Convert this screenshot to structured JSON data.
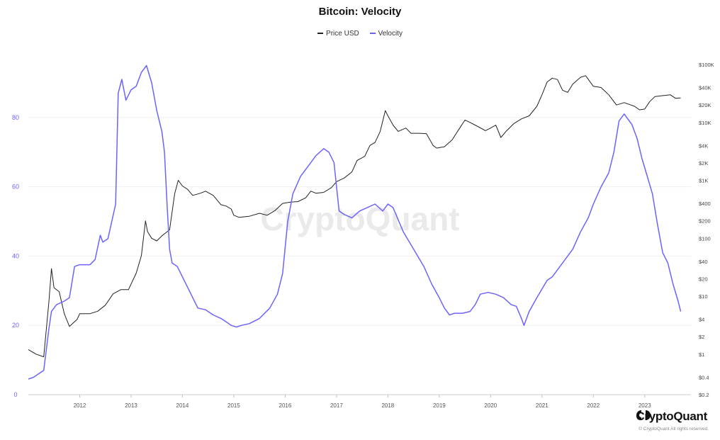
{
  "chart_data": {
    "type": "line",
    "title": "Bitcoin: Velocity",
    "legend_placement": "top-center",
    "grid": true,
    "x_ticks": [
      "2012",
      "2013",
      "2014",
      "2015",
      "2016",
      "2017",
      "2018",
      "2019",
      "2020",
      "2021",
      "2022",
      "2023"
    ],
    "x_range": [
      2011.0,
      2023.9
    ],
    "left_axis": {
      "ticks": [
        "0",
        "20",
        "40",
        "60",
        "80"
      ],
      "range": [
        0,
        100
      ],
      "color": "#6c63ff"
    },
    "right_axis": {
      "scale": "log",
      "ticks": [
        "$100K",
        "$40K",
        "$20K",
        "$10K",
        "$4K",
        "$2K",
        "$1K",
        "$400",
        "$200",
        "$100",
        "$40",
        "$20",
        "$10",
        "$4",
        "$2",
        "$1",
        "$0.4",
        "$0.2"
      ],
      "tick_values": [
        100000,
        40000,
        20000,
        10000,
        4000,
        2000,
        1000,
        400,
        200,
        100,
        40,
        20,
        10,
        4,
        2,
        1,
        0.4,
        0.2
      ],
      "range": [
        0.2,
        100000
      ]
    },
    "series": [
      {
        "name": "Price USD",
        "axis": "right",
        "color": "#222222",
        "points": [
          [
            2011.0,
            1.2
          ],
          [
            2011.15,
            1
          ],
          [
            2011.3,
            0.9
          ],
          [
            2011.4,
            8
          ],
          [
            2011.45,
            30
          ],
          [
            2011.5,
            14
          ],
          [
            2011.6,
            12
          ],
          [
            2011.7,
            5
          ],
          [
            2011.8,
            3
          ],
          [
            2011.95,
            4
          ],
          [
            2012.0,
            5
          ],
          [
            2012.2,
            5
          ],
          [
            2012.35,
            5.5
          ],
          [
            2012.5,
            7
          ],
          [
            2012.65,
            11
          ],
          [
            2012.8,
            13
          ],
          [
            2012.95,
            13
          ],
          [
            2013.1,
            25
          ],
          [
            2013.2,
            50
          ],
          [
            2013.28,
            200
          ],
          [
            2013.32,
            130
          ],
          [
            2013.4,
            100
          ],
          [
            2013.5,
            90
          ],
          [
            2013.6,
            110
          ],
          [
            2013.75,
            140
          ],
          [
            2013.85,
            600
          ],
          [
            2013.92,
            1000
          ],
          [
            2014.0,
            800
          ],
          [
            2014.1,
            700
          ],
          [
            2014.2,
            550
          ],
          [
            2014.35,
            600
          ],
          [
            2014.45,
            650
          ],
          [
            2014.6,
            550
          ],
          [
            2014.75,
            380
          ],
          [
            2014.85,
            360
          ],
          [
            2014.95,
            320
          ],
          [
            2015.0,
            250
          ],
          [
            2015.1,
            230
          ],
          [
            2015.3,
            240
          ],
          [
            2015.5,
            270
          ],
          [
            2015.65,
            250
          ],
          [
            2015.8,
            300
          ],
          [
            2015.95,
            400
          ],
          [
            2016.1,
            420
          ],
          [
            2016.25,
            430
          ],
          [
            2016.4,
            500
          ],
          [
            2016.5,
            650
          ],
          [
            2016.6,
            600
          ],
          [
            2016.75,
            620
          ],
          [
            2016.9,
            750
          ],
          [
            2017.0,
            950
          ],
          [
            2017.15,
            1100
          ],
          [
            2017.3,
            1400
          ],
          [
            2017.4,
            2200
          ],
          [
            2017.55,
            2600
          ],
          [
            2017.65,
            4000
          ],
          [
            2017.75,
            4500
          ],
          [
            2017.85,
            7000
          ],
          [
            2017.95,
            16000
          ],
          [
            2018.0,
            13000
          ],
          [
            2018.1,
            9000
          ],
          [
            2018.2,
            7000
          ],
          [
            2018.35,
            8000
          ],
          [
            2018.45,
            6500
          ],
          [
            2018.6,
            6500
          ],
          [
            2018.75,
            6400
          ],
          [
            2018.88,
            4000
          ],
          [
            2018.95,
            3600
          ],
          [
            2019.1,
            3800
          ],
          [
            2019.25,
            5000
          ],
          [
            2019.4,
            8000
          ],
          [
            2019.5,
            11000
          ],
          [
            2019.6,
            10000
          ],
          [
            2019.75,
            8500
          ],
          [
            2019.9,
            7200
          ],
          [
            2020.0,
            8000
          ],
          [
            2020.1,
            9000
          ],
          [
            2020.2,
            5500
          ],
          [
            2020.3,
            7000
          ],
          [
            2020.45,
            9500
          ],
          [
            2020.6,
            11500
          ],
          [
            2020.75,
            13000
          ],
          [
            2020.9,
            19000
          ],
          [
            2021.0,
            30000
          ],
          [
            2021.1,
            50000
          ],
          [
            2021.2,
            58000
          ],
          [
            2021.3,
            55000
          ],
          [
            2021.4,
            36000
          ],
          [
            2021.5,
            33000
          ],
          [
            2021.6,
            46000
          ],
          [
            2021.75,
            60000
          ],
          [
            2021.85,
            64000
          ],
          [
            2022.0,
            42000
          ],
          [
            2022.15,
            40000
          ],
          [
            2022.3,
            30000
          ],
          [
            2022.45,
            20000
          ],
          [
            2022.6,
            22000
          ],
          [
            2022.8,
            19000
          ],
          [
            2022.9,
            16500
          ],
          [
            2023.0,
            17000
          ],
          [
            2023.1,
            23000
          ],
          [
            2023.2,
            28000
          ],
          [
            2023.35,
            29000
          ],
          [
            2023.5,
            30000
          ],
          [
            2023.6,
            26000
          ],
          [
            2023.7,
            26500
          ]
        ]
      },
      {
        "name": "Velocity",
        "axis": "left",
        "color": "#6c63ff",
        "points": [
          [
            2011.0,
            4.5
          ],
          [
            2011.1,
            5
          ],
          [
            2011.3,
            7
          ],
          [
            2011.4,
            19
          ],
          [
            2011.45,
            24
          ],
          [
            2011.55,
            26
          ],
          [
            2011.7,
            27
          ],
          [
            2011.8,
            28
          ],
          [
            2011.9,
            37
          ],
          [
            2012.0,
            37.5
          ],
          [
            2012.2,
            37.5
          ],
          [
            2012.3,
            39
          ],
          [
            2012.4,
            46
          ],
          [
            2012.45,
            44
          ],
          [
            2012.55,
            45
          ],
          [
            2012.7,
            55
          ],
          [
            2012.75,
            87
          ],
          [
            2012.82,
            91
          ],
          [
            2012.9,
            85
          ],
          [
            2013.0,
            88
          ],
          [
            2013.1,
            89
          ],
          [
            2013.2,
            93
          ],
          [
            2013.3,
            95
          ],
          [
            2013.4,
            90
          ],
          [
            2013.5,
            82
          ],
          [
            2013.6,
            76
          ],
          [
            2013.65,
            70
          ],
          [
            2013.7,
            55
          ],
          [
            2013.75,
            42
          ],
          [
            2013.8,
            38
          ],
          [
            2013.9,
            37
          ],
          [
            2014.0,
            34
          ],
          [
            2014.1,
            31
          ],
          [
            2014.2,
            28
          ],
          [
            2014.3,
            25
          ],
          [
            2014.45,
            24.5
          ],
          [
            2014.6,
            23
          ],
          [
            2014.75,
            22
          ],
          [
            2014.85,
            21
          ],
          [
            2014.95,
            20
          ],
          [
            2015.05,
            19.5
          ],
          [
            2015.15,
            20
          ],
          [
            2015.3,
            20.5
          ],
          [
            2015.5,
            22
          ],
          [
            2015.7,
            25
          ],
          [
            2015.85,
            29
          ],
          [
            2015.95,
            35
          ],
          [
            2016.05,
            50
          ],
          [
            2016.15,
            58
          ],
          [
            2016.3,
            63
          ],
          [
            2016.45,
            66
          ],
          [
            2016.6,
            69
          ],
          [
            2016.75,
            71
          ],
          [
            2016.85,
            70
          ],
          [
            2016.95,
            67
          ],
          [
            2017.05,
            53
          ],
          [
            2017.15,
            52
          ],
          [
            2017.3,
            51
          ],
          [
            2017.45,
            53
          ],
          [
            2017.6,
            54
          ],
          [
            2017.75,
            55
          ],
          [
            2017.9,
            53
          ],
          [
            2018.0,
            55
          ],
          [
            2018.1,
            54
          ],
          [
            2018.3,
            47
          ],
          [
            2018.5,
            42
          ],
          [
            2018.7,
            37
          ],
          [
            2018.85,
            32
          ],
          [
            2019.0,
            28
          ],
          [
            2019.1,
            25
          ],
          [
            2019.2,
            23
          ],
          [
            2019.3,
            23.5
          ],
          [
            2019.45,
            23.5
          ],
          [
            2019.6,
            24
          ],
          [
            2019.7,
            26
          ],
          [
            2019.8,
            29
          ],
          [
            2019.95,
            29.5
          ],
          [
            2020.1,
            29
          ],
          [
            2020.25,
            28
          ],
          [
            2020.4,
            26
          ],
          [
            2020.5,
            25.5
          ],
          [
            2020.6,
            22
          ],
          [
            2020.65,
            20
          ],
          [
            2020.75,
            24
          ],
          [
            2020.9,
            28
          ],
          [
            2021.0,
            30.5
          ],
          [
            2021.1,
            33
          ],
          [
            2021.2,
            34
          ],
          [
            2021.35,
            37
          ],
          [
            2021.5,
            40
          ],
          [
            2021.6,
            42
          ],
          [
            2021.75,
            47
          ],
          [
            2021.9,
            51
          ],
          [
            2022.0,
            55
          ],
          [
            2022.15,
            60
          ],
          [
            2022.3,
            64
          ],
          [
            2022.4,
            70
          ],
          [
            2022.5,
            79
          ],
          [
            2022.6,
            81
          ],
          [
            2022.65,
            80
          ],
          [
            2022.75,
            78
          ],
          [
            2022.85,
            74
          ],
          [
            2022.95,
            68
          ],
          [
            2023.05,
            63
          ],
          [
            2023.15,
            58
          ],
          [
            2023.25,
            49
          ],
          [
            2023.35,
            41
          ],
          [
            2023.45,
            38
          ],
          [
            2023.55,
            32
          ],
          [
            2023.65,
            27
          ],
          [
            2023.7,
            24
          ]
        ]
      }
    ],
    "watermark": "CryptoQuant"
  },
  "brand": {
    "name": "CryptoQuant",
    "copyright": "© CryptoQuant All rights reserved."
  }
}
